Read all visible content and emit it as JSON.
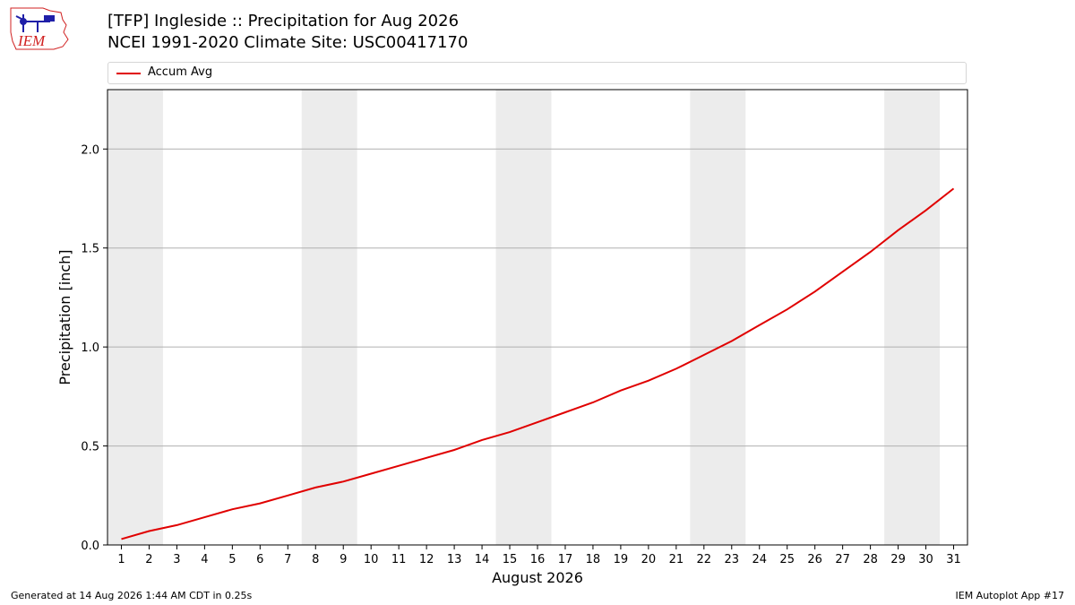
{
  "header": {
    "title_line1": "[TFP] Ingleside :: Precipitation for Aug 2026",
    "title_line2": "NCEI 1991-2020 Climate Site: USC00417170"
  },
  "logo": {
    "text": "IEM",
    "icon": "iem-weather-station-logo"
  },
  "footer": {
    "generated": "Generated at 14 Aug 2026 1:44 AM CDT in 0.25s",
    "app": "IEM Autoplot App #17"
  },
  "colors": {
    "series": "#e00000",
    "weekend_band": "#ececec",
    "grid": "#b0b0b0",
    "logo": "#1f1fa8",
    "logo_text": "#d02020"
  },
  "chart_data": {
    "type": "line",
    "xlabel": "August 2026",
    "ylabel": "Precipitation [inch]",
    "xlim": [
      0.5,
      31.5
    ],
    "ylim": [
      0.0,
      2.3
    ],
    "x_ticks": [
      1,
      2,
      3,
      4,
      5,
      6,
      7,
      8,
      9,
      10,
      11,
      12,
      13,
      14,
      15,
      16,
      17,
      18,
      19,
      20,
      21,
      22,
      23,
      24,
      25,
      26,
      27,
      28,
      29,
      30,
      31
    ],
    "y_ticks": [
      0.0,
      0.5,
      1.0,
      1.5,
      2.0
    ],
    "y_tick_labels": [
      "0.0",
      "0.5",
      "1.0",
      "1.5",
      "2.0"
    ],
    "grid": "horizontal",
    "legend_position": "top, above plot",
    "weekend_bands": [
      [
        0.5,
        2.5
      ],
      [
        7.5,
        9.5
      ],
      [
        14.5,
        16.5
      ],
      [
        21.5,
        23.5
      ],
      [
        28.5,
        30.5
      ]
    ],
    "series": [
      {
        "name": "Accum Avg",
        "x": [
          1,
          2,
          3,
          4,
          5,
          6,
          7,
          8,
          9,
          10,
          11,
          12,
          13,
          14,
          15,
          16,
          17,
          18,
          19,
          20,
          21,
          22,
          23,
          24,
          25,
          26,
          27,
          28,
          29,
          30,
          31
        ],
        "values": [
          0.03,
          0.07,
          0.1,
          0.14,
          0.18,
          0.21,
          0.25,
          0.29,
          0.32,
          0.36,
          0.4,
          0.44,
          0.48,
          0.53,
          0.57,
          0.62,
          0.67,
          0.72,
          0.78,
          0.83,
          0.89,
          0.96,
          1.03,
          1.11,
          1.19,
          1.28,
          1.38,
          1.48,
          1.59,
          1.69,
          1.8
        ]
      }
    ]
  }
}
